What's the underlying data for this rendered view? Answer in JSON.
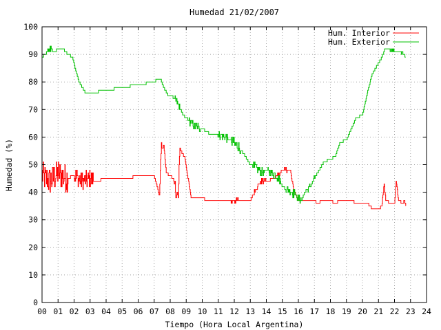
{
  "chart_data": {
    "type": "line",
    "title": "Humedad 21/02/2007",
    "xlabel": "Tiempo (Hora Local Argentina)",
    "ylabel": "Humedad (%)",
    "xlim": [
      0,
      24
    ],
    "ylim": [
      0,
      100
    ],
    "grid": true,
    "legend_position": "top-right",
    "x_ticks": [
      "00",
      "01",
      "02",
      "03",
      "04",
      "05",
      "06",
      "07",
      "08",
      "09",
      "10",
      "11",
      "12",
      "13",
      "14",
      "15",
      "16",
      "17",
      "18",
      "19",
      "20",
      "21",
      "22",
      "23",
      "24"
    ],
    "y_ticks": [
      "0",
      "10",
      "20",
      "30",
      "40",
      "50",
      "60",
      "70",
      "80",
      "90",
      "100"
    ],
    "series": [
      {
        "name": "Hum. Interior",
        "color": "#ff0000",
        "noisy_segments": [
          [
            0.0,
            1.6,
            5
          ],
          [
            2.0,
            3.2,
            3.5
          ],
          [
            7.3,
            7.5,
            3
          ],
          [
            8.3,
            8.6,
            3
          ],
          [
            11.8,
            12.3,
            1
          ],
          [
            13.2,
            14.0,
            1
          ],
          [
            14.6,
            15.3,
            1
          ]
        ],
        "x": [
          0.0,
          0.5,
          1.0,
          1.5,
          2.0,
          2.5,
          3.0,
          3.3,
          4.0,
          5.0,
          6.0,
          7.0,
          7.2,
          7.3,
          7.45,
          7.6,
          7.75,
          8.0,
          8.2,
          8.4,
          8.5,
          8.6,
          8.75,
          8.9,
          9.3,
          9.8,
          10.5,
          11.0,
          11.5,
          12.0,
          12.5,
          13.0,
          13.4,
          13.7,
          14.0,
          14.5,
          15.0,
          15.5,
          15.7,
          16.0,
          16.5,
          17.0,
          17.2,
          17.5,
          18.0,
          18.3,
          18.6,
          19.0,
          19.3,
          19.6,
          20.0,
          20.3,
          20.6,
          21.0,
          21.2,
          21.35,
          21.45,
          21.6,
          22.0,
          22.1,
          22.25,
          22.5,
          22.6,
          22.7
        ],
        "y": [
          46,
          44,
          47,
          45,
          46,
          44,
          45,
          44,
          45,
          45.3,
          45.6,
          46,
          42,
          39,
          55,
          57,
          47,
          46,
          45,
          39,
          38,
          56,
          54,
          53,
          38,
          38,
          37,
          37,
          37,
          37,
          37,
          37,
          42,
          44,
          44,
          45,
          48,
          48,
          41,
          37,
          37,
          37,
          36,
          37,
          37,
          36,
          37,
          37,
          37,
          36,
          36,
          36,
          34,
          34,
          35,
          43,
          37,
          36.5,
          36,
          44,
          37,
          36,
          37,
          35
        ]
      },
      {
        "name": "Hum. Exterior",
        "color": "#00c000",
        "noisy_segments": [
          [
            0.3,
            0.6,
            1
          ],
          [
            8.3,
            8.6,
            1
          ],
          [
            9.2,
            9.9,
            1.5
          ],
          [
            10.9,
            11.6,
            1.5
          ],
          [
            11.8,
            12.4,
            2
          ],
          [
            13.2,
            13.9,
            1.5
          ],
          [
            14.1,
            14.9,
            1.5
          ],
          [
            15.2,
            15.8,
            1.5
          ],
          [
            15.9,
            16.3,
            1.5
          ],
          [
            16.6,
            17.0,
            1
          ],
          [
            21.3,
            22.5,
            0.5
          ]
        ],
        "x": [
          0.0,
          0.2,
          0.45,
          0.8,
          1.0,
          1.3,
          1.6,
          1.9,
          2.1,
          2.3,
          2.7,
          3.0,
          4.0,
          5.0,
          6.0,
          7.0,
          7.2,
          7.4,
          7.6,
          7.9,
          8.1,
          8.4,
          8.8,
          9.0,
          9.5,
          10.0,
          10.3,
          10.5,
          11.0,
          11.4,
          11.8,
          12.1,
          12.3,
          12.6,
          12.8,
          13.0,
          13.3,
          13.6,
          13.8,
          14.0,
          14.3,
          14.6,
          14.8,
          15.0,
          15.3,
          15.6,
          16.0,
          16.2,
          16.4,
          16.7,
          17.0,
          17.3,
          17.6,
          18.0,
          18.3,
          18.6,
          19.0,
          19.3,
          19.6,
          20.0,
          20.3,
          20.6,
          21.0,
          21.2,
          21.4,
          21.6,
          22.0,
          22.4,
          22.7
        ],
        "y": [
          89,
          90,
          92,
          91,
          92,
          92,
          90,
          89,
          84,
          80,
          76,
          76,
          77,
          78,
          79,
          80,
          81,
          81,
          78,
          75,
          75,
          73,
          68,
          67,
          64,
          63,
          62,
          61,
          61,
          60,
          59,
          57,
          56,
          54,
          52,
          50,
          49,
          48,
          47,
          48,
          47,
          46,
          45,
          42,
          41,
          40,
          38,
          37,
          40,
          42,
          45,
          48,
          51,
          52,
          53,
          58,
          59,
          63,
          67,
          68,
          76,
          83,
          87,
          89,
          92,
          92,
          91,
          91,
          89
        ]
      }
    ]
  }
}
